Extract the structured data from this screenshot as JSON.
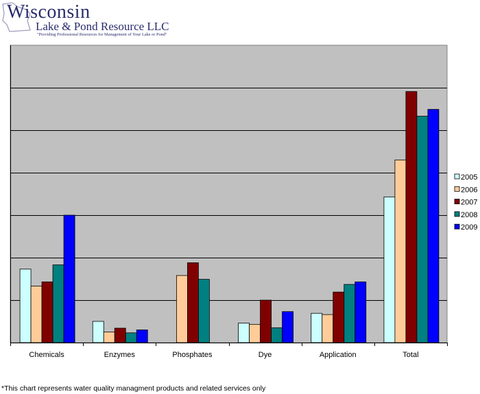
{
  "logo": {
    "name": "Wisconsin",
    "company": "Lake & Pond Resource LLC",
    "tagline": "\"Providing Professional Resources for Management of Your Lake or Pond\""
  },
  "chart_data": {
    "type": "bar",
    "categories": [
      "Chemicals",
      "Enzymes",
      "Phosphates",
      "Dye",
      "Application",
      "Total"
    ],
    "series": [
      {
        "name": "2005",
        "color": "#ccffff",
        "values": [
          1.73,
          0.5,
          null,
          0.46,
          0.69,
          3.43
        ]
      },
      {
        "name": "2006",
        "color": "#ffcc99",
        "values": [
          1.33,
          0.25,
          1.58,
          0.43,
          0.66,
          4.3
        ]
      },
      {
        "name": "2007",
        "color": "#800000",
        "values": [
          1.43,
          0.34,
          1.88,
          1.0,
          1.19,
          5.91
        ]
      },
      {
        "name": "2008",
        "color": "#008080",
        "values": [
          1.83,
          0.23,
          1.49,
          0.35,
          1.37,
          5.33
        ]
      },
      {
        "name": "2009",
        "color": "#0000ff",
        "values": [
          3.0,
          0.3,
          null,
          0.73,
          1.43,
          5.49
        ]
      }
    ],
    "ylim": [
      0,
      7
    ],
    "grid": true,
    "y_tick_labels_shown": false,
    "legend_position": "right",
    "plot_background": "#c0c0c0"
  },
  "footnote": "*This chart represents water quality managment products and related services only"
}
